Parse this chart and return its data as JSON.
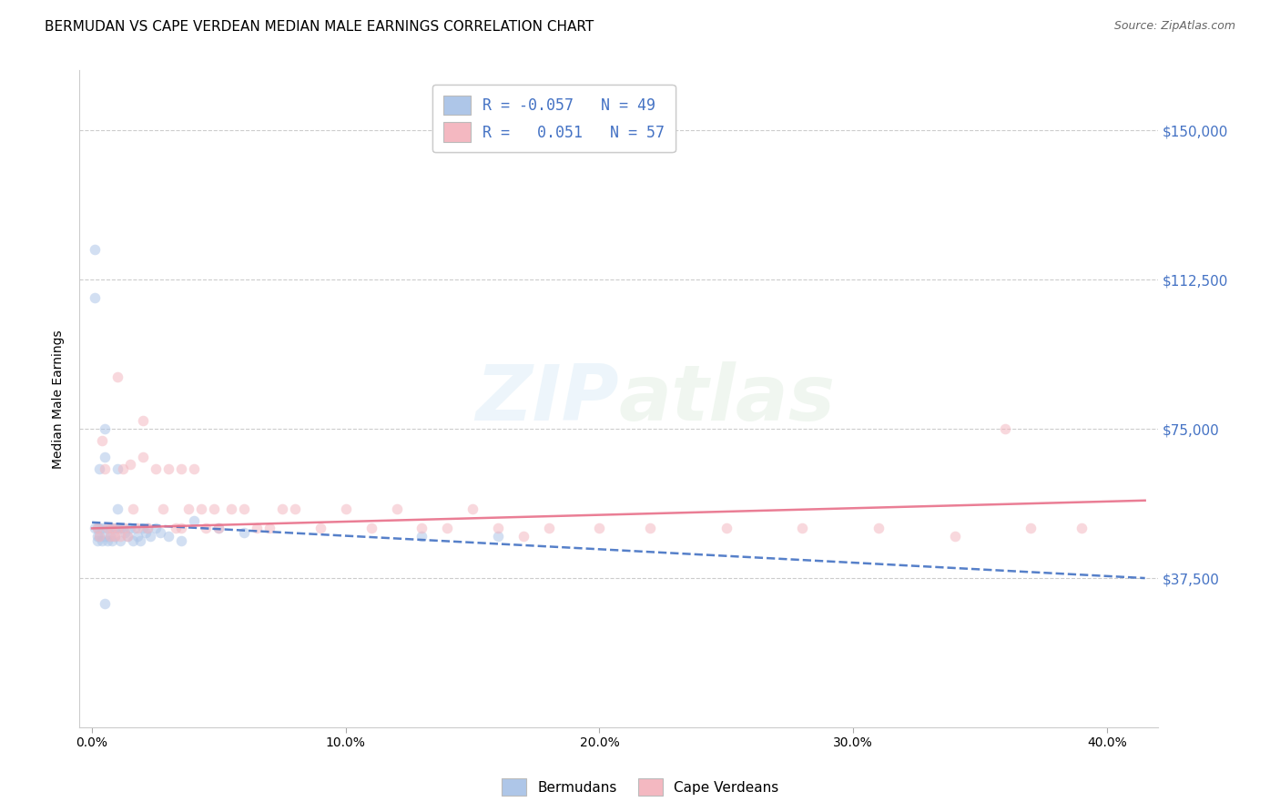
{
  "title": "BERMUDAN VS CAPE VERDEAN MEDIAN MALE EARNINGS CORRELATION CHART",
  "source": "Source: ZipAtlas.com",
  "ylabel": "Median Male Earnings",
  "xlabel_ticks": [
    "0.0%",
    "10.0%",
    "20.0%",
    "30.0%",
    "40.0%"
  ],
  "xlabel_vals": [
    0.0,
    0.1,
    0.2,
    0.3,
    0.4
  ],
  "ytick_labels": [
    "$37,500",
    "$75,000",
    "$112,500",
    "$150,000"
  ],
  "ytick_vals": [
    37500,
    75000,
    112500,
    150000
  ],
  "ylim": [
    0,
    165000
  ],
  "xlim": [
    -0.005,
    0.42
  ],
  "watermark_zip": "ZIP",
  "watermark_atlas": "atlas",
  "legend_entries": [
    {
      "label": "R = -0.057   N = 49",
      "color": "#aec6e8"
    },
    {
      "label": "R =   0.051   N = 57",
      "color": "#f4b8c1"
    }
  ],
  "legend_bottom": [
    "Bermudans",
    "Cape Verdeans"
  ],
  "blue_scatter_x": [
    0.001,
    0.001,
    0.001,
    0.002,
    0.002,
    0.002,
    0.003,
    0.003,
    0.003,
    0.004,
    0.004,
    0.005,
    0.005,
    0.005,
    0.006,
    0.006,
    0.007,
    0.007,
    0.008,
    0.008,
    0.009,
    0.009,
    0.01,
    0.01,
    0.01,
    0.011,
    0.011,
    0.012,
    0.013,
    0.014,
    0.015,
    0.016,
    0.017,
    0.018,
    0.019,
    0.02,
    0.021,
    0.022,
    0.023,
    0.025,
    0.027,
    0.03,
    0.035,
    0.04,
    0.05,
    0.06,
    0.13,
    0.16,
    0.005
  ],
  "blue_scatter_y": [
    120000,
    108000,
    50000,
    50000,
    48000,
    47000,
    65000,
    50000,
    48000,
    50000,
    47000,
    75000,
    68000,
    48000,
    50000,
    47000,
    50000,
    48000,
    50000,
    47000,
    50000,
    48000,
    65000,
    55000,
    50000,
    50000,
    47000,
    50000,
    49000,
    48000,
    50000,
    47000,
    50000,
    48000,
    47000,
    50000,
    49000,
    50000,
    48000,
    50000,
    49000,
    48000,
    47000,
    52000,
    50000,
    49000,
    48000,
    48000,
    31000
  ],
  "pink_scatter_x": [
    0.002,
    0.003,
    0.004,
    0.005,
    0.006,
    0.007,
    0.008,
    0.009,
    0.01,
    0.011,
    0.012,
    0.013,
    0.014,
    0.015,
    0.016,
    0.018,
    0.02,
    0.022,
    0.025,
    0.028,
    0.03,
    0.033,
    0.035,
    0.038,
    0.04,
    0.043,
    0.045,
    0.048,
    0.05,
    0.055,
    0.06,
    0.065,
    0.07,
    0.075,
    0.08,
    0.09,
    0.1,
    0.11,
    0.12,
    0.13,
    0.14,
    0.15,
    0.16,
    0.17,
    0.18,
    0.2,
    0.22,
    0.25,
    0.28,
    0.31,
    0.34,
    0.37,
    0.39,
    0.01,
    0.02,
    0.035,
    0.36
  ],
  "pink_scatter_y": [
    50000,
    48000,
    72000,
    65000,
    50000,
    48000,
    50000,
    48000,
    50000,
    48000,
    65000,
    50000,
    48000,
    66000,
    55000,
    50000,
    68000,
    50000,
    65000,
    55000,
    65000,
    50000,
    65000,
    55000,
    65000,
    55000,
    50000,
    55000,
    50000,
    55000,
    55000,
    50000,
    50000,
    55000,
    55000,
    50000,
    55000,
    50000,
    55000,
    50000,
    50000,
    55000,
    50000,
    48000,
    50000,
    50000,
    50000,
    50000,
    50000,
    50000,
    48000,
    50000,
    50000,
    88000,
    77000,
    50000,
    75000
  ],
  "blue_line_x0": 0.0,
  "blue_line_x1": 0.415,
  "blue_line_y0": 51500,
  "blue_line_y1": 37500,
  "pink_line_x0": 0.0,
  "pink_line_x1": 0.415,
  "pink_line_y0": 50000,
  "pink_line_y1": 57000,
  "blue_line_color": "#4472c4",
  "pink_line_color": "#e8708a",
  "blue_scatter_color": "#aec6e8",
  "pink_scatter_color": "#f4b8c1",
  "grid_color": "#cccccc",
  "background_color": "#ffffff",
  "title_fontsize": 11,
  "tick_label_color_right": "#4472c4",
  "scatter_size": 70,
  "scatter_alpha": 0.55,
  "line_alpha": 0.9,
  "line_width": 1.8
}
